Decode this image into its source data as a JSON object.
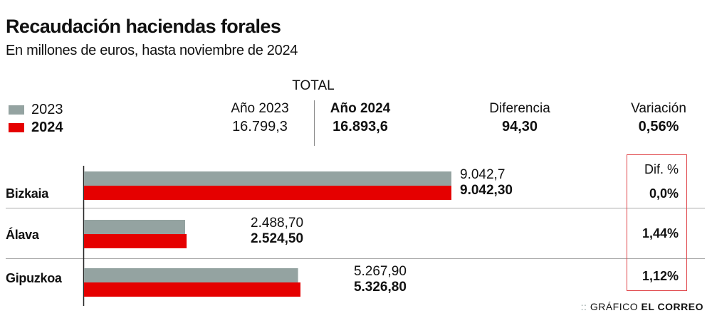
{
  "title": "Recaudación haciendas forales",
  "subtitle": "En millones de euros, hasta noviembre de 2024",
  "legend": [
    {
      "label": "2023",
      "color": "#94a3a1"
    },
    {
      "label": "2024",
      "color": "#e50000"
    }
  ],
  "totals": {
    "label": "TOTAL",
    "year2023_header": "Año 2023",
    "year2023_value": "16.799,3",
    "year2024_header": "Año 2024",
    "year2024_value": "16.893,6",
    "diff_header": "Diferencia",
    "diff_value": "94,30",
    "var_header": "Variación",
    "var_value": "0,56%"
  },
  "dif_header": "Dif. %",
  "credit": {
    "prefix": "GRÁFICO",
    "brand": "EL CORREO"
  },
  "chart_data": {
    "type": "bar",
    "orientation": "horizontal",
    "title": "Recaudación haciendas forales",
    "subtitle": "En millones de euros, hasta noviembre de 2024",
    "categories": [
      "Bizkaia",
      "Álava",
      "Gipuzkoa"
    ],
    "series": [
      {
        "name": "2023",
        "values": [
          9042.7,
          2488.7,
          5267.9
        ],
        "labels": [
          "9.042,7",
          "2.488,70",
          "5.267,90"
        ],
        "color": "#94a3a1"
      },
      {
        "name": "2024",
        "values": [
          9042.3,
          2524.5,
          5326.8
        ],
        "labels": [
          "9.042,30",
          "2.524,50",
          "5.326,80"
        ],
        "color": "#e50000"
      }
    ],
    "dif_pct": [
      "0,0%",
      "1,44%",
      "1,12%"
    ],
    "xlim": [
      0,
      9042.7
    ],
    "grid": false,
    "legend": "top-left"
  }
}
